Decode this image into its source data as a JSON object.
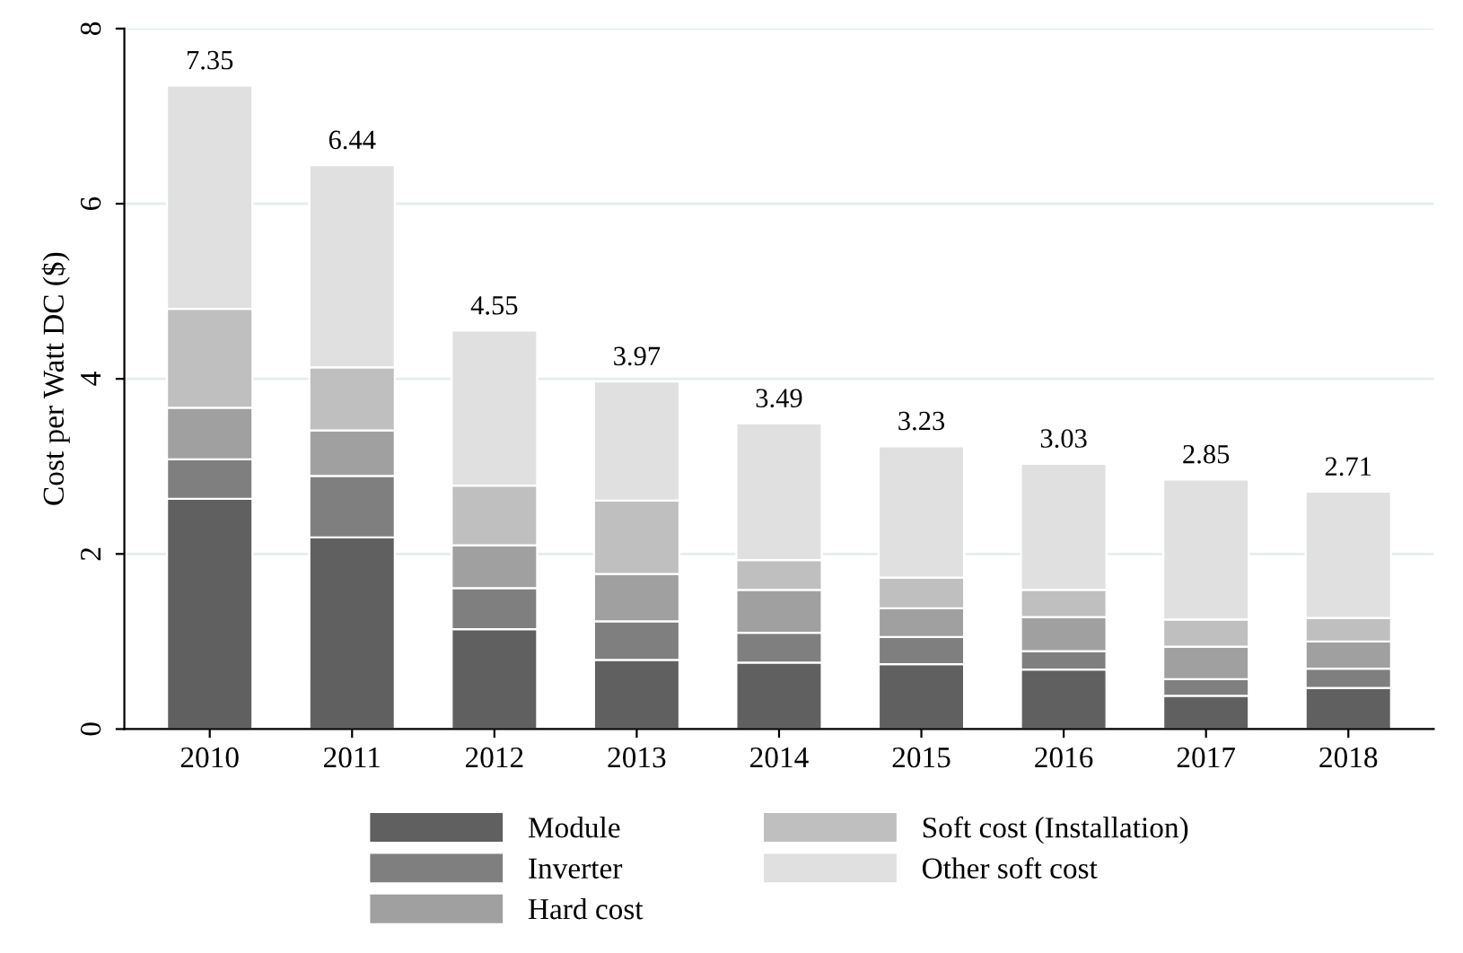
{
  "chart_data": {
    "type": "bar",
    "stacked": true,
    "ylabel": "Cost per Watt DC ($)",
    "categories": [
      "2010",
      "2011",
      "2012",
      "2013",
      "2014",
      "2015",
      "2016",
      "2017",
      "2018"
    ],
    "series": [
      {
        "name": "Module",
        "color": "#606060",
        "values": [
          2.63,
          2.19,
          1.14,
          0.79,
          0.76,
          0.74,
          0.68,
          0.38,
          0.47
        ]
      },
      {
        "name": "Inverter",
        "color": "#7f7f7f",
        "values": [
          0.45,
          0.7,
          0.47,
          0.44,
          0.34,
          0.31,
          0.21,
          0.19,
          0.22
        ]
      },
      {
        "name": "Hard cost",
        "color": "#a0a0a0",
        "values": [
          0.59,
          0.52,
          0.49,
          0.54,
          0.49,
          0.33,
          0.39,
          0.37,
          0.31
        ]
      },
      {
        "name": "Soft cost (Installation)",
        "color": "#bfbfbf",
        "values": [
          1.13,
          0.72,
          0.68,
          0.84,
          0.34,
          0.35,
          0.31,
          0.31,
          0.27
        ]
      },
      {
        "name": "Other soft cost",
        "color": "#e0e0e0",
        "values": [
          2.55,
          2.31,
          1.77,
          1.36,
          1.56,
          1.5,
          1.44,
          1.6,
          1.44
        ]
      }
    ],
    "totals": [
      "7.35",
      "6.44",
      "4.55",
      "3.97",
      "3.49",
      "3.23",
      "3.03",
      "2.85",
      "2.71"
    ],
    "ylim": [
      0,
      8
    ],
    "yticks": [
      0,
      2,
      4,
      6,
      8
    ],
    "grid": "y",
    "legend": "bottom"
  }
}
